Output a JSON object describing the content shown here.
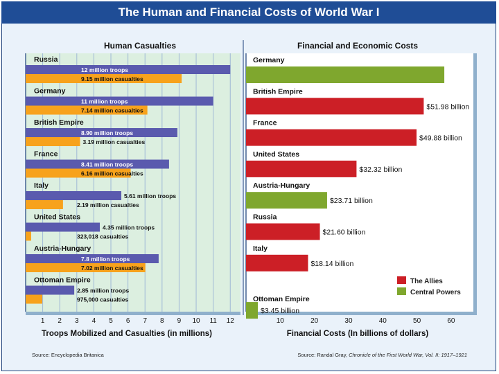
{
  "title": "The Human and Financial Costs of World War I",
  "chart_data": [
    {
      "type": "bar",
      "title": "Human Casualties",
      "xlabel": "Troops Mobilized and Casualties (in millions)",
      "xlim": [
        0,
        12.6
      ],
      "ticks": [
        "1",
        "2",
        "3",
        "4",
        "5",
        "6",
        "7",
        "8",
        "9",
        "10",
        "11",
        "12"
      ],
      "categories": [
        "Russia",
        "Germany",
        "British Empire",
        "France",
        "Italy",
        "United States",
        "Austria-Hungary",
        "Ottoman Empire"
      ],
      "series": [
        {
          "name": "Troops mobilized",
          "color": "#5a5aae",
          "values": [
            12,
            11,
            8.9,
            8.41,
            5.61,
            4.35,
            7.8,
            2.85
          ],
          "labels": [
            "12 million troops",
            "11 million troops",
            "8.90 million troops",
            "8.41 million troops",
            "5.61 million troops",
            "4.35 million troops",
            "7.8 million troops",
            "2.85 million troops"
          ]
        },
        {
          "name": "Casualties",
          "color": "#f7a21c",
          "values": [
            9.15,
            7.14,
            3.19,
            6.16,
            2.19,
            0.323,
            7.02,
            0.975
          ],
          "labels": [
            "9.15 million casualties",
            "7.14 million casualties",
            "3.19 million casualties",
            "6.16 million casualties",
            "2.19 million casualties",
            "323,018 casualties",
            "7.02 million casualties",
            "975,000 casualties"
          ]
        }
      ],
      "source": "Source: Encyclopedia Britanica"
    },
    {
      "type": "bar",
      "title": "Financial and Economic Costs",
      "xlabel": "Financial Costs (In billions of dollars)",
      "xlim": [
        0,
        66.5
      ],
      "ticks": [
        "10",
        "20",
        "30",
        "40",
        "50",
        "60"
      ],
      "categories": [
        "Germany",
        "British Empire",
        "France",
        "United States",
        "Austria-Hungary",
        "Russia",
        "Italy",
        "Ottoman Empire"
      ],
      "values": [
        58,
        51.98,
        49.88,
        32.32,
        23.71,
        21.6,
        18.14,
        3.45
      ],
      "value_labels": [
        "",
        "$51.98 billion",
        "$49.88 billion",
        "$32.32 billion",
        "$23.71 billion",
        "$21.60 billion",
        "$18.14 billion",
        "$3.45 billion"
      ],
      "groups": [
        "Central Powers",
        "The Allies",
        "The Allies",
        "The Allies",
        "Central Powers",
        "The Allies",
        "The Allies",
        "Central Powers"
      ],
      "legend": [
        {
          "name": "The Allies",
          "color": "#cc1f26"
        },
        {
          "name": "Central Powers",
          "color": "#7fa72e"
        }
      ],
      "legend_position": "bottom-right",
      "source_prefix": "Source: Randal Gray, ",
      "source_title": "Chronicle of the First World War, Vol. II: 1917–1921"
    }
  ]
}
